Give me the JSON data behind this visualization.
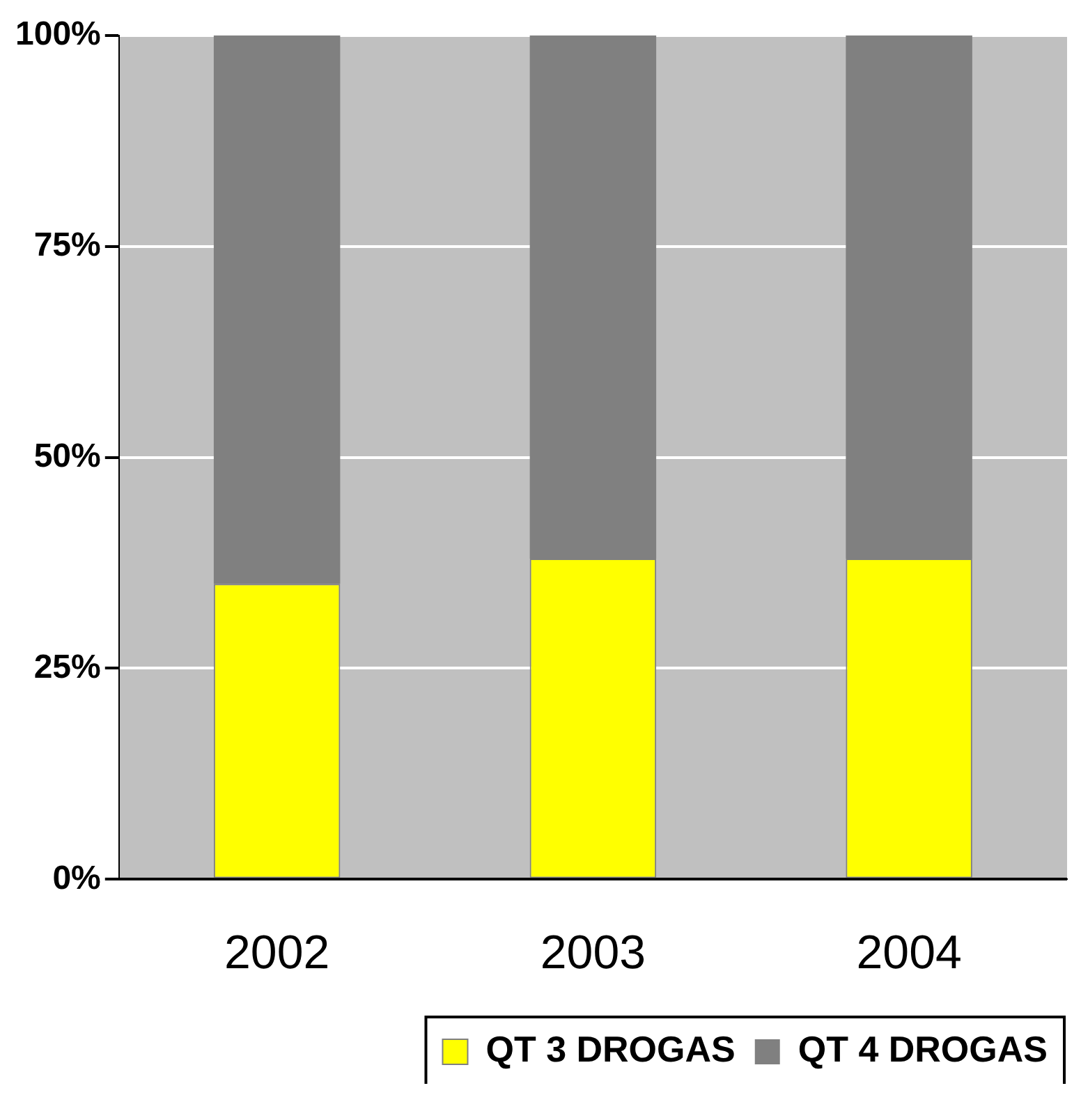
{
  "chart_data": {
    "type": "bar",
    "stacked": true,
    "categories": [
      "2002",
      "2003",
      "2004"
    ],
    "series": [
      {
        "name": "QT 3 DROGAS",
        "color": "#ffff00",
        "values": [
          35,
          38,
          38
        ]
      },
      {
        "name": "QT 4 DROGAS",
        "color": "#808080",
        "values": [
          65,
          62,
          62
        ]
      }
    ],
    "ylim": [
      0,
      100
    ],
    "yticks": [
      {
        "value": 0,
        "label": "0%"
      },
      {
        "value": 25,
        "label": "25%"
      },
      {
        "value": 50,
        "label": "50%"
      },
      {
        "value": 75,
        "label": "75%"
      },
      {
        "value": 100,
        "label": "100%"
      }
    ],
    "grid": "y",
    "legend": "bottom right"
  }
}
